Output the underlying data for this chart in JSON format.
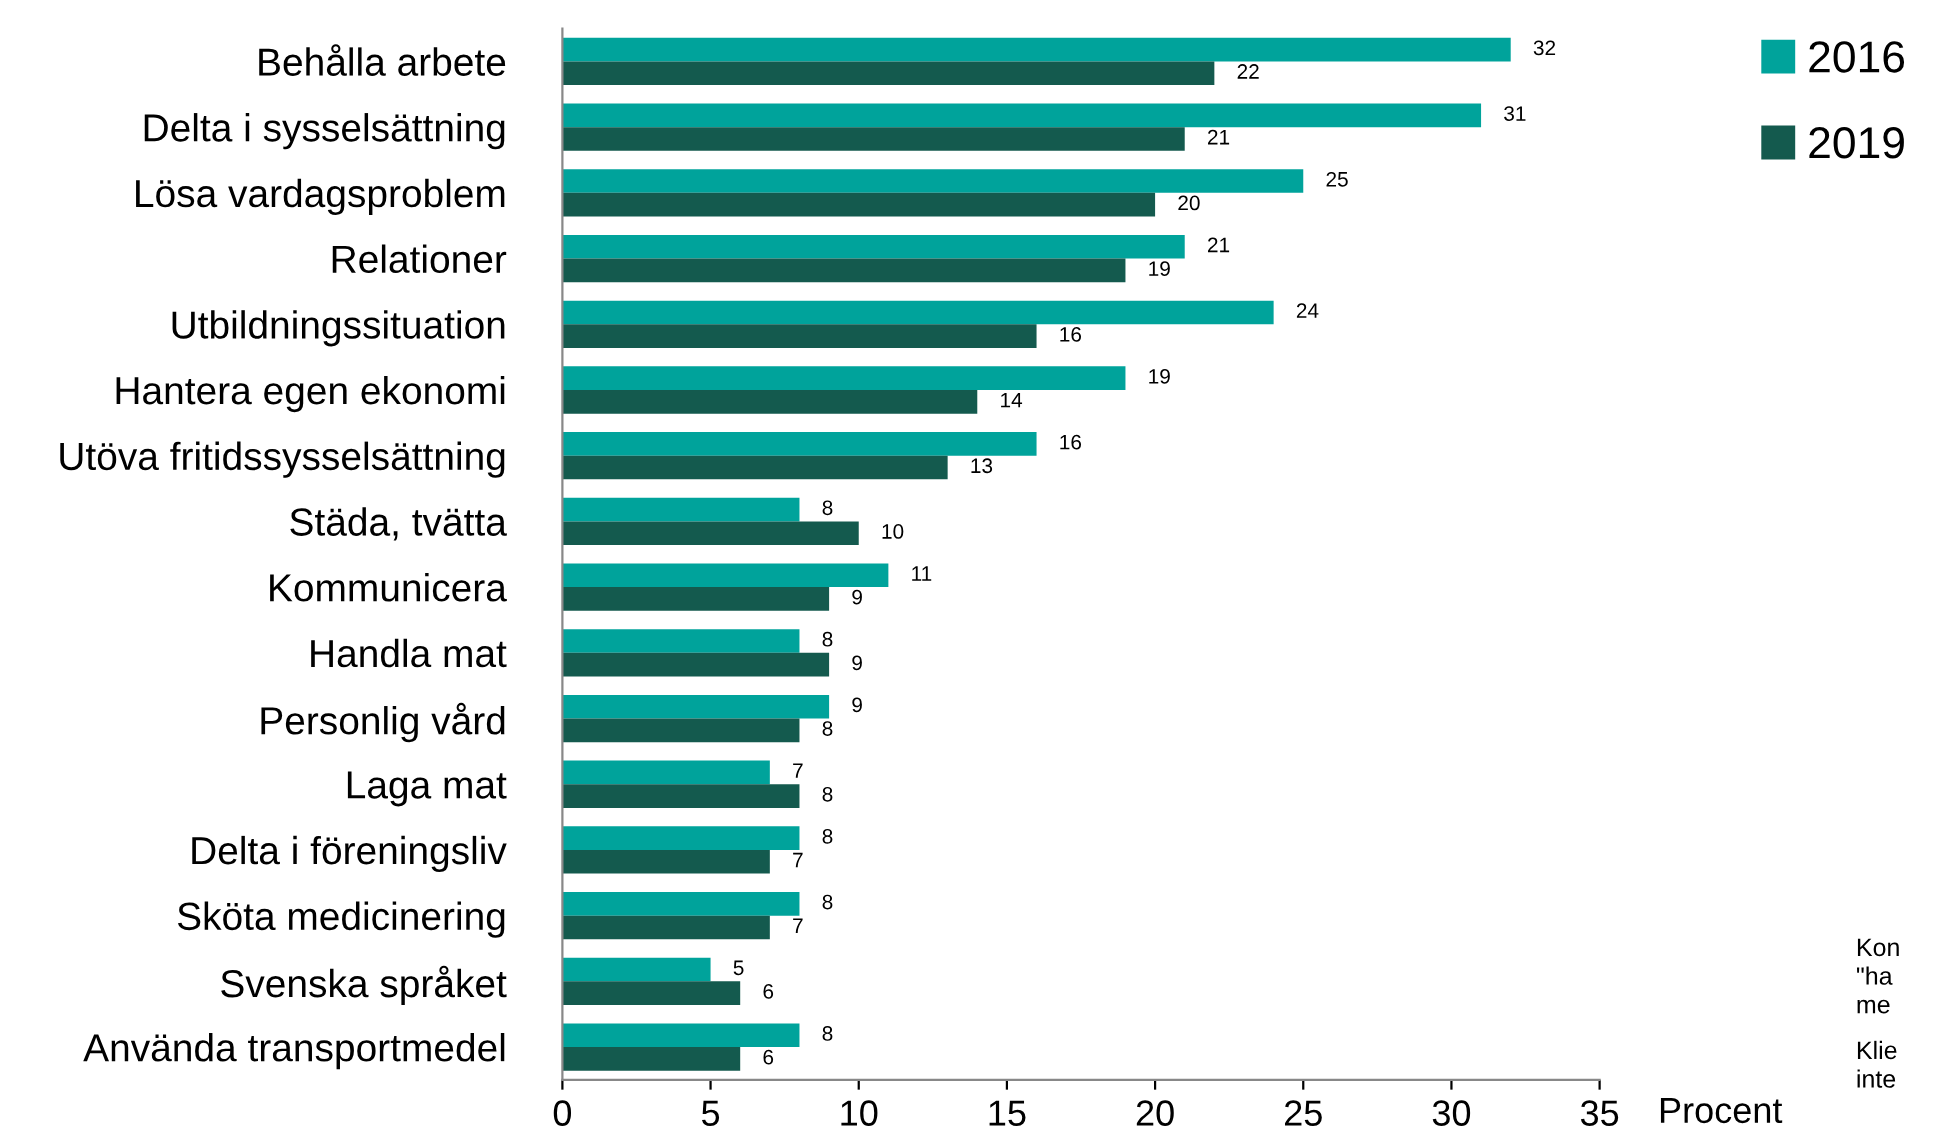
{
  "chart_data": {
    "type": "bar",
    "orientation": "horizontal",
    "categories": [
      "Behålla arbete",
      "Delta i sysselsättning",
      "Lösa vardagsproblem",
      "Relationer",
      "Utbildningssituation",
      "Hantera egen ekonomi",
      "Utöva fritidssysselsättning",
      "Städa, tvätta",
      "Kommunicera",
      "Handla mat",
      "Personlig vård",
      "Laga mat",
      "Delta i föreningsliv",
      "Sköta medicinering",
      "Svenska språket",
      "Använda transportmedel"
    ],
    "series": [
      {
        "name": "2016",
        "color": "#00a39b",
        "values": [
          32,
          31,
          25,
          21,
          24,
          19,
          16,
          8,
          11,
          8,
          9,
          7,
          8,
          8,
          5,
          8
        ]
      },
      {
        "name": "2019",
        "color": "#145a4e",
        "values": [
          22,
          21,
          20,
          19,
          16,
          14,
          13,
          10,
          9,
          9,
          8,
          8,
          7,
          7,
          6,
          6
        ]
      }
    ],
    "xlim": [
      0,
      35
    ],
    "xticks": [
      0,
      5,
      10,
      15,
      20,
      25,
      30,
      35
    ],
    "xlabel": "Procent",
    "data_labels": true,
    "legend": "top right",
    "grid": false,
    "annotations": [
      "Kon",
      "\"ha",
      "me",
      "Klie",
      "inte"
    ]
  }
}
